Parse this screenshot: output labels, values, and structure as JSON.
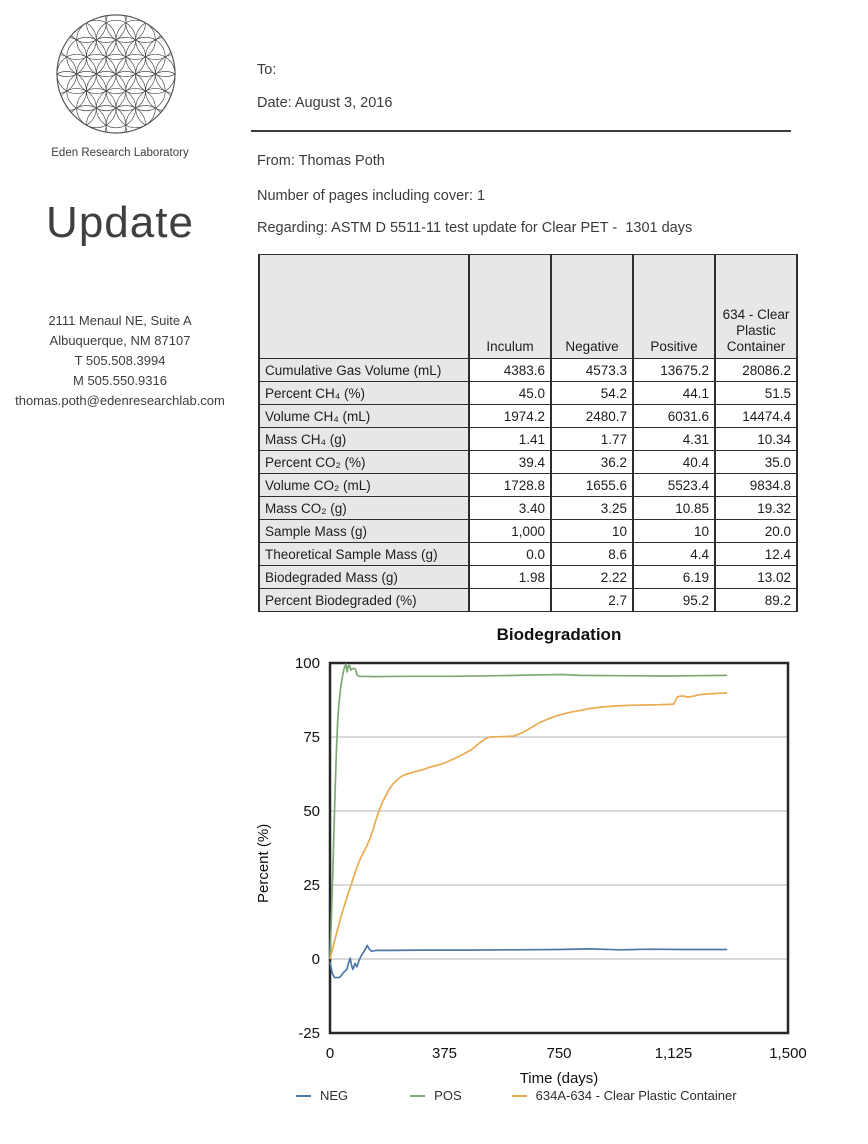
{
  "sidebar": {
    "org_name": "Eden Research Laboratory",
    "logo_icon": "flower-of-life-icon",
    "masthead": "Update",
    "address_lines": [
      "2111 Menaul NE, Suite A",
      "Albuquerque, NM  87107",
      "T 505.508.3994",
      "M 505.550.9316",
      "thomas.poth@edenresearchlab.com"
    ]
  },
  "memo": {
    "to_line": "To:",
    "date_line": "Date: August 3, 2016",
    "from_line": "From: Thomas Poth",
    "pages_line": "Number of pages including cover: 1",
    "regarding_line": "Regarding: ASTM D 5511-11 test update for Clear PET -  1301 days"
  },
  "results_table": {
    "columns": [
      "",
      "Inculum",
      "Negative",
      "Positive",
      "634 - Clear Plastic Container"
    ],
    "rows": [
      {
        "label": "Cumulative Gas Volume (mL)",
        "values": [
          "4383.6",
          "4573.3",
          "13675.2",
          "28086.2"
        ]
      },
      {
        "label": "Percent CH₄ (%)",
        "values": [
          "45.0",
          "54.2",
          "44.1",
          "51.5"
        ]
      },
      {
        "label": "Volume CH₄ (mL)",
        "values": [
          "1974.2",
          "2480.7",
          "6031.6",
          "14474.4"
        ]
      },
      {
        "label": "Mass CH₄ (g)",
        "values": [
          "1.41",
          "1.77",
          "4.31",
          "10.34"
        ]
      },
      {
        "label": "Percent CO₂ (%)",
        "values": [
          "39.4",
          "36.2",
          "40.4",
          "35.0"
        ]
      },
      {
        "label": "Volume CO₂ (mL)",
        "values": [
          "1728.8",
          "1655.6",
          "5523.4",
          "9834.8"
        ]
      },
      {
        "label": "Mass CO₂ (g)",
        "values": [
          "3.40",
          "3.25",
          "10.85",
          "19.32"
        ]
      },
      {
        "label": "Sample Mass (g)",
        "values": [
          "1,000",
          "10",
          "10",
          "20.0"
        ]
      },
      {
        "label": "Theoretical Sample Mass (g)",
        "values": [
          "0.0",
          "8.6",
          "4.4",
          "12.4"
        ]
      },
      {
        "label": "Biodegraded Mass (g)",
        "values": [
          "1.98",
          "2.22",
          "6.19",
          "13.02"
        ]
      },
      {
        "label": "Percent Biodegraded (%)",
        "values": [
          "",
          "2.7",
          "95.2",
          "89.2"
        ]
      }
    ]
  },
  "chart_data": {
    "type": "line",
    "title": "Biodegradation",
    "xlabel": "Time (days)",
    "ylabel": "Percent (%)",
    "xlim": [
      0,
      1500
    ],
    "ylim": [
      -25,
      100
    ],
    "xticks": {
      "values": [
        0,
        375,
        750,
        1125,
        1500
      ],
      "labels": [
        "0",
        "375",
        "750",
        "1,125",
        "1,500"
      ]
    },
    "yticks": {
      "values": [
        100,
        75,
        50,
        25,
        0,
        -25
      ],
      "labels": [
        "100",
        "75",
        "50",
        "25",
        "0",
        "-25"
      ]
    },
    "grid_y": [
      75,
      50,
      25,
      0
    ],
    "grid_color": "#b6b6b6",
    "frame_color": "#272727",
    "legend_position": "bottom",
    "series": [
      {
        "name": "NEG",
        "color": "#4e79a7",
        "points": [
          [
            0,
            -1
          ],
          [
            8,
            -5
          ],
          [
            15,
            -6.3
          ],
          [
            32,
            -6.2
          ],
          [
            45,
            -4.5
          ],
          [
            55,
            -3.5
          ],
          [
            62,
            -1
          ],
          [
            66,
            0.3
          ],
          [
            70,
            -2
          ],
          [
            75,
            -3.5
          ],
          [
            82,
            -1.5
          ],
          [
            88,
            -2.6
          ],
          [
            95,
            -0.5
          ],
          [
            103,
            1.2
          ],
          [
            112,
            2.6
          ],
          [
            122,
            4.6
          ],
          [
            128,
            3.4
          ],
          [
            136,
            2.6
          ],
          [
            150,
            2.9
          ],
          [
            200,
            2.9
          ],
          [
            300,
            3
          ],
          [
            450,
            3
          ],
          [
            600,
            3.1
          ],
          [
            750,
            3.2
          ],
          [
            850,
            3.4
          ],
          [
            950,
            3.1
          ],
          [
            1050,
            3.3
          ],
          [
            1150,
            3.2
          ],
          [
            1301,
            3.2
          ]
        ]
      },
      {
        "name": "POS",
        "color": "#7fa973",
        "points": [
          [
            0,
            0
          ],
          [
            6,
            18
          ],
          [
            12,
            40
          ],
          [
            17,
            58
          ],
          [
            21,
            70
          ],
          [
            25,
            80
          ],
          [
            29,
            86
          ],
          [
            34,
            91
          ],
          [
            40,
            95
          ],
          [
            46,
            98
          ],
          [
            52,
            99.6
          ],
          [
            56,
            97
          ],
          [
            60,
            99
          ],
          [
            64,
            99.2
          ],
          [
            68,
            97.6
          ],
          [
            73,
            98
          ],
          [
            79,
            98.2
          ],
          [
            84,
            97.8
          ],
          [
            88,
            96
          ],
          [
            95,
            95.5
          ],
          [
            150,
            95.4
          ],
          [
            250,
            95.5
          ],
          [
            400,
            95.5
          ],
          [
            550,
            95.7
          ],
          [
            700,
            96
          ],
          [
            760,
            96.1
          ],
          [
            820,
            95.8
          ],
          [
            950,
            95.7
          ],
          [
            1100,
            95.6
          ],
          [
            1200,
            95.7
          ],
          [
            1301,
            95.8
          ]
        ]
      },
      {
        "name": "634A-634 - Clear Plastic Container",
        "color": "#e9ab4f",
        "points": [
          [
            0,
            0
          ],
          [
            12,
            5
          ],
          [
            25,
            10
          ],
          [
            38,
            15
          ],
          [
            50,
            19
          ],
          [
            62,
            23
          ],
          [
            69,
            25
          ],
          [
            80,
            28.5
          ],
          [
            92,
            32
          ],
          [
            100,
            34
          ],
          [
            112,
            36.5
          ],
          [
            122,
            38.5
          ],
          [
            132,
            41
          ],
          [
            142,
            44
          ],
          [
            152,
            47.5
          ],
          [
            160,
            50
          ],
          [
            172,
            53
          ],
          [
            182,
            55
          ],
          [
            192,
            57
          ],
          [
            205,
            59
          ],
          [
            220,
            60.5
          ],
          [
            235,
            61.8
          ],
          [
            252,
            62.5
          ],
          [
            275,
            63.2
          ],
          [
            300,
            63.9
          ],
          [
            330,
            64.9
          ],
          [
            360,
            65.7
          ],
          [
            375,
            66.2
          ],
          [
            405,
            67.6
          ],
          [
            427,
            68.7
          ],
          [
            460,
            70.5
          ],
          [
            490,
            73
          ],
          [
            510,
            74.5
          ],
          [
            525,
            75
          ],
          [
            560,
            75.1
          ],
          [
            600,
            75.3
          ],
          [
            615,
            75.8
          ],
          [
            640,
            77
          ],
          [
            665,
            78.5
          ],
          [
            685,
            79.8
          ],
          [
            705,
            80.7
          ],
          [
            730,
            81.7
          ],
          [
            760,
            82.7
          ],
          [
            790,
            83.4
          ],
          [
            820,
            84
          ],
          [
            850,
            84.6
          ],
          [
            880,
            85
          ],
          [
            910,
            85.3
          ],
          [
            940,
            85.5
          ],
          [
            980,
            85.7
          ],
          [
            1030,
            85.8
          ],
          [
            1080,
            85.9
          ],
          [
            1125,
            86.1
          ],
          [
            1138,
            88.6
          ],
          [
            1155,
            88.9
          ],
          [
            1172,
            88.5
          ],
          [
            1190,
            88.8
          ],
          [
            1215,
            89.4
          ],
          [
            1245,
            89.6
          ],
          [
            1301,
            89.9
          ]
        ]
      }
    ]
  }
}
